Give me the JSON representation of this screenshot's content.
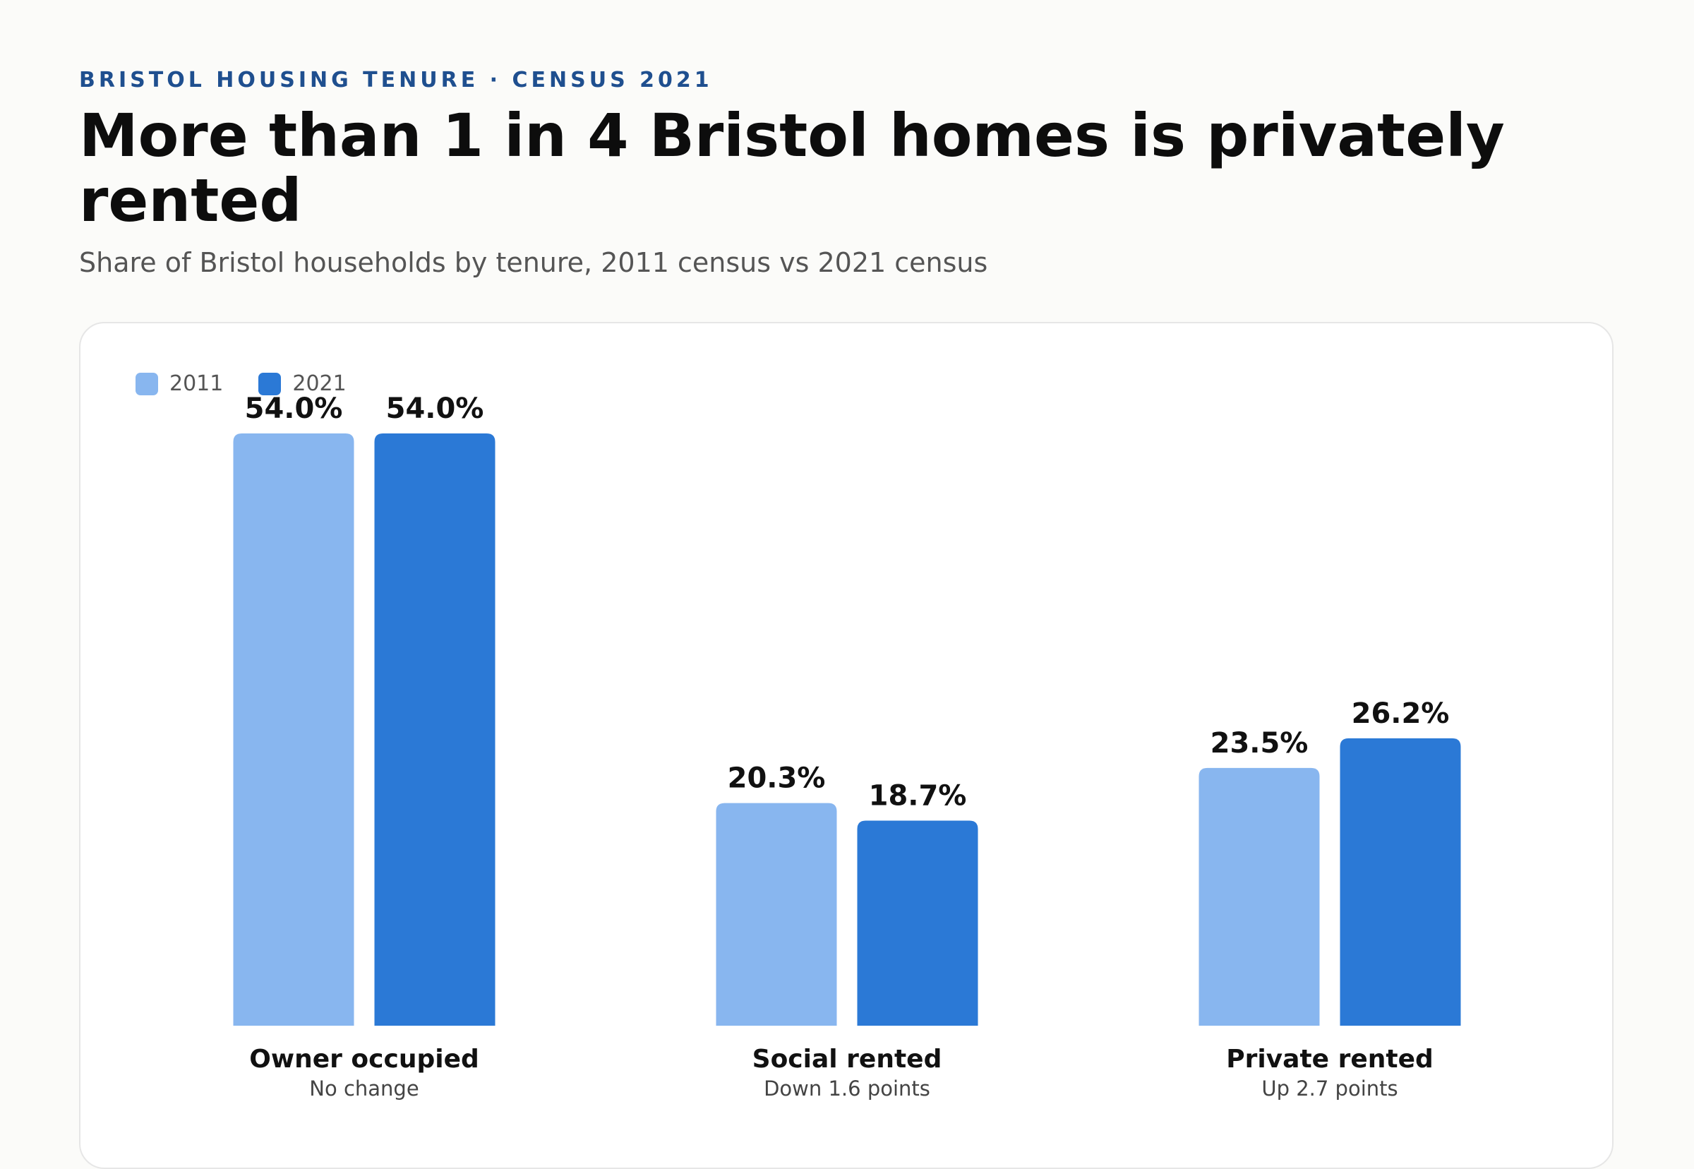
{
  "header": {
    "eyebrow": "BRISTOL HOUSING TENURE · CENSUS 2021",
    "title": "More than 1 in 4 Bristol homes is privately rented",
    "subtitle": "Share of Bristol households by tenure, 2011 census vs 2021 census"
  },
  "legend": [
    {
      "label": "2011",
      "color": "#88b6ef"
    },
    {
      "label": "2021",
      "color": "#2b79d6"
    }
  ],
  "chart_data": {
    "type": "bar",
    "categories": [
      "Owner occupied",
      "Social rented",
      "Private rented"
    ],
    "category_notes": [
      "No change",
      "Down 1.6 points",
      "Up 2.7 points"
    ],
    "series": [
      {
        "name": "2011",
        "color": "#88b6ef",
        "values": [
          54.0,
          20.3,
          23.5
        ],
        "labels": [
          "54.0%",
          "20.3%",
          "23.5%"
        ]
      },
      {
        "name": "2021",
        "color": "#2b79d6",
        "values": [
          54.0,
          18.7,
          26.2
        ],
        "labels": [
          "54.0%",
          "18.7%",
          "26.2%"
        ]
      }
    ],
    "unit": "%",
    "title": "",
    "xlabel": "",
    "ylabel": "",
    "ylim": [
      0,
      54
    ],
    "grid": false,
    "legend_position": "top-left"
  }
}
